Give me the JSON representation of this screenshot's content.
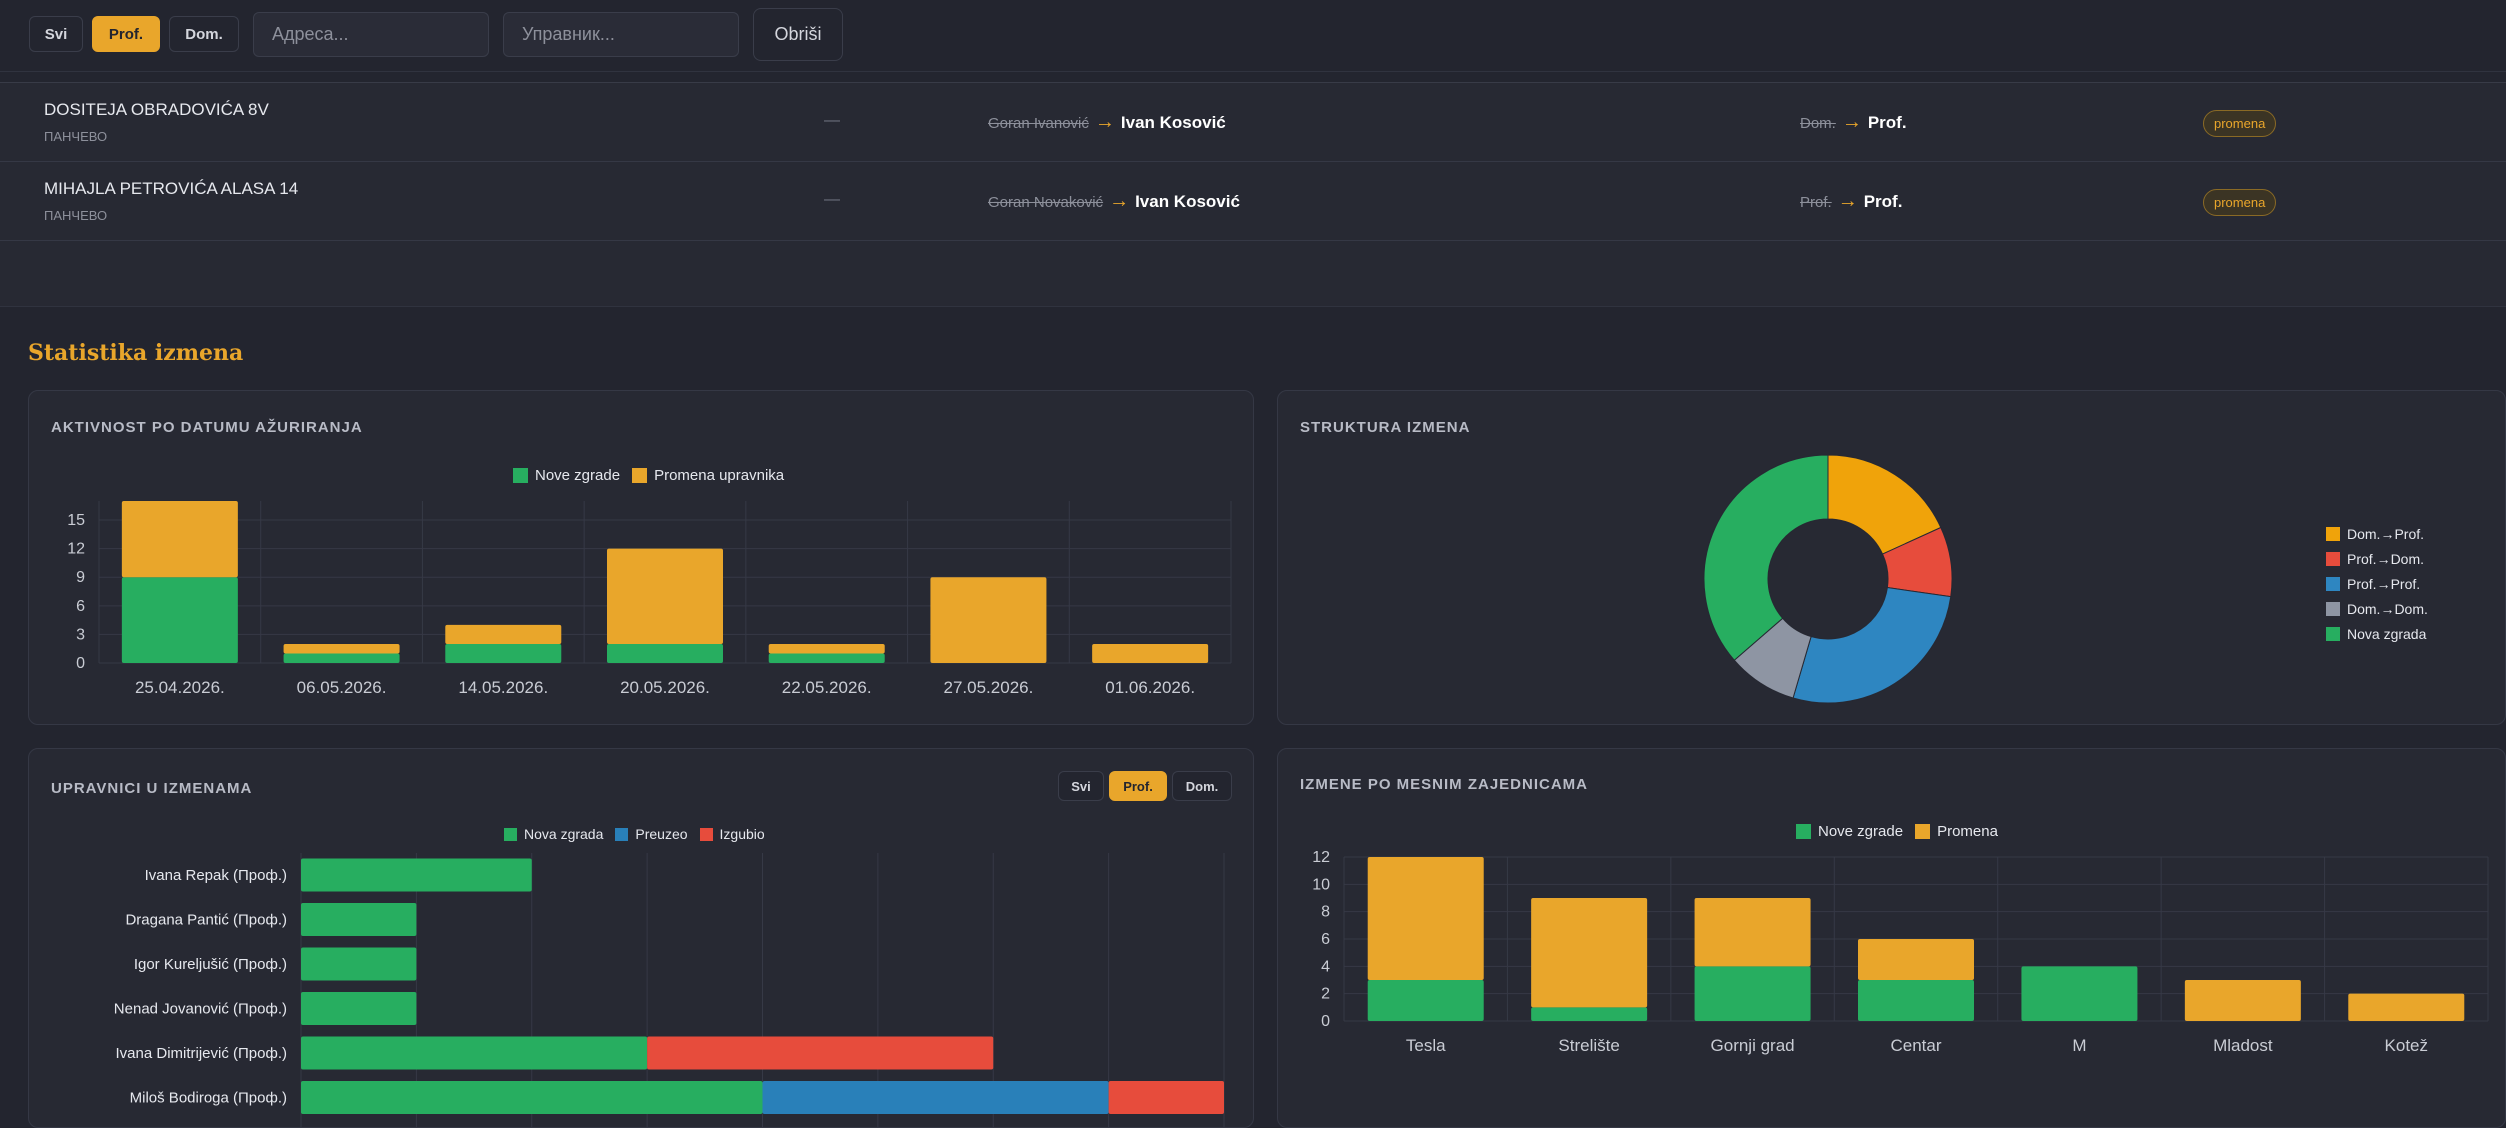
{
  "filter": {
    "all": "Svi",
    "prof": "Prof.",
    "dom": "Dom.",
    "address_placeholder": "Адреса...",
    "manager_placeholder": "Управник...",
    "clear": "Obriši"
  },
  "table": {
    "rows": [
      {
        "address": "DOSITEJA OBRADOVIĆA 8V",
        "city": "ПАНЧЕВО",
        "dash": "—",
        "old_manager": "Goran Ivanović",
        "new_manager": "Ivan Kosović",
        "old_type": "Dom.",
        "new_type": "Prof.",
        "badge": "promena"
      },
      {
        "address": "MIHAJLA PETROVIĆA ALASA 14",
        "city": "ПАНЧЕВО",
        "dash": "—",
        "old_manager": "Goran Novaković",
        "new_manager": "Ivan Kosović",
        "old_type": "Prof.",
        "new_type": "Prof.",
        "badge": "promena"
      }
    ],
    "arrow": "→"
  },
  "stats": {
    "title": "Statistika izmena"
  },
  "colors": {
    "green": "#27ae60",
    "orange": "#e9a62b",
    "red": "#e74c3c",
    "blue": "#2980b9",
    "gray": "#8e95a3",
    "accent": "#e9a62b"
  },
  "chart_data": [
    {
      "type": "bar",
      "stacked": true,
      "title": "AKTIVNOST PO DATUMU AŽURIRANJA",
      "categories": [
        "25.04.2026.",
        "06.05.2026.",
        "14.05.2026.",
        "20.05.2026.",
        "22.05.2026.",
        "27.05.2026.",
        "01.06.2026."
      ],
      "series": [
        {
          "name": "Nove zgrade",
          "color": "#27ae60",
          "values": [
            9,
            1,
            2,
            2,
            1,
            0,
            0
          ]
        },
        {
          "name": "Promena upravnika",
          "color": "#e9a62b",
          "values": [
            8,
            1,
            2,
            10,
            1,
            9,
            2
          ]
        }
      ],
      "yticks": [
        0,
        3,
        6,
        9,
        12,
        15
      ],
      "ylim": [
        0,
        17
      ],
      "legend": "top",
      "grid": true
    },
    {
      "type": "pie",
      "donut": true,
      "title": "STRUKTURA IZMENA",
      "labels": [
        "Dom.→Prof.",
        "Prof.→Dom.",
        "Prof.→Prof.",
        "Dom.→Dom.",
        "Nova zgrada"
      ],
      "colors": [
        "#f0a30a",
        "#e74c3c",
        "#2e86c1",
        "#8e95a3",
        "#27ae60"
      ],
      "values": [
        6,
        3,
        9,
        3,
        12
      ],
      "legend": "right"
    },
    {
      "type": "bar",
      "orientation": "horizontal",
      "stacked": true,
      "title": "UPRAVNICI U IZMENAMA",
      "filters": [
        "Svi",
        "Prof.",
        "Dom."
      ],
      "active_filter": "Prof.",
      "categories": [
        "Ivana Repak (Проф.)",
        "Dragana Pantić (Проф.)",
        "Igor Kureljušić (Проф.)",
        "Nenad Jovanović (Проф.)",
        "Ivana Dimitrijević (Проф.)",
        "Miloš Bodiroga (Проф.)"
      ],
      "series": [
        {
          "name": "Nova zgrada",
          "color": "#27ae60",
          "values": [
            2,
            1,
            1,
            1,
            3,
            4
          ]
        },
        {
          "name": "Preuzeo",
          "color": "#2980b9",
          "values": [
            0,
            0,
            0,
            0,
            0,
            3
          ]
        },
        {
          "name": "Izgubio",
          "color": "#e74c3c",
          "values": [
            0,
            0,
            0,
            0,
            3,
            1
          ]
        }
      ],
      "xlim": [
        0,
        8
      ],
      "legend": "top",
      "grid": true
    },
    {
      "type": "bar",
      "stacked": true,
      "title": "IZMENE PO MESNIM ZAJEDNICAMA",
      "categories": [
        "Tesla",
        "Strelište",
        "Gornji grad",
        "Centar",
        "M",
        "Mladost",
        "Kotež"
      ],
      "series": [
        {
          "name": "Nove zgrade",
          "color": "#27ae60",
          "values": [
            3,
            1,
            4,
            3,
            4,
            0,
            0
          ]
        },
        {
          "name": "Promena",
          "color": "#e9a62b",
          "values": [
            9,
            8,
            5,
            3,
            0,
            3,
            2
          ]
        }
      ],
      "yticks": [
        0,
        2,
        4,
        6,
        8,
        10,
        12
      ],
      "ylim": [
        0,
        12
      ],
      "legend": "top",
      "grid": true
    }
  ]
}
